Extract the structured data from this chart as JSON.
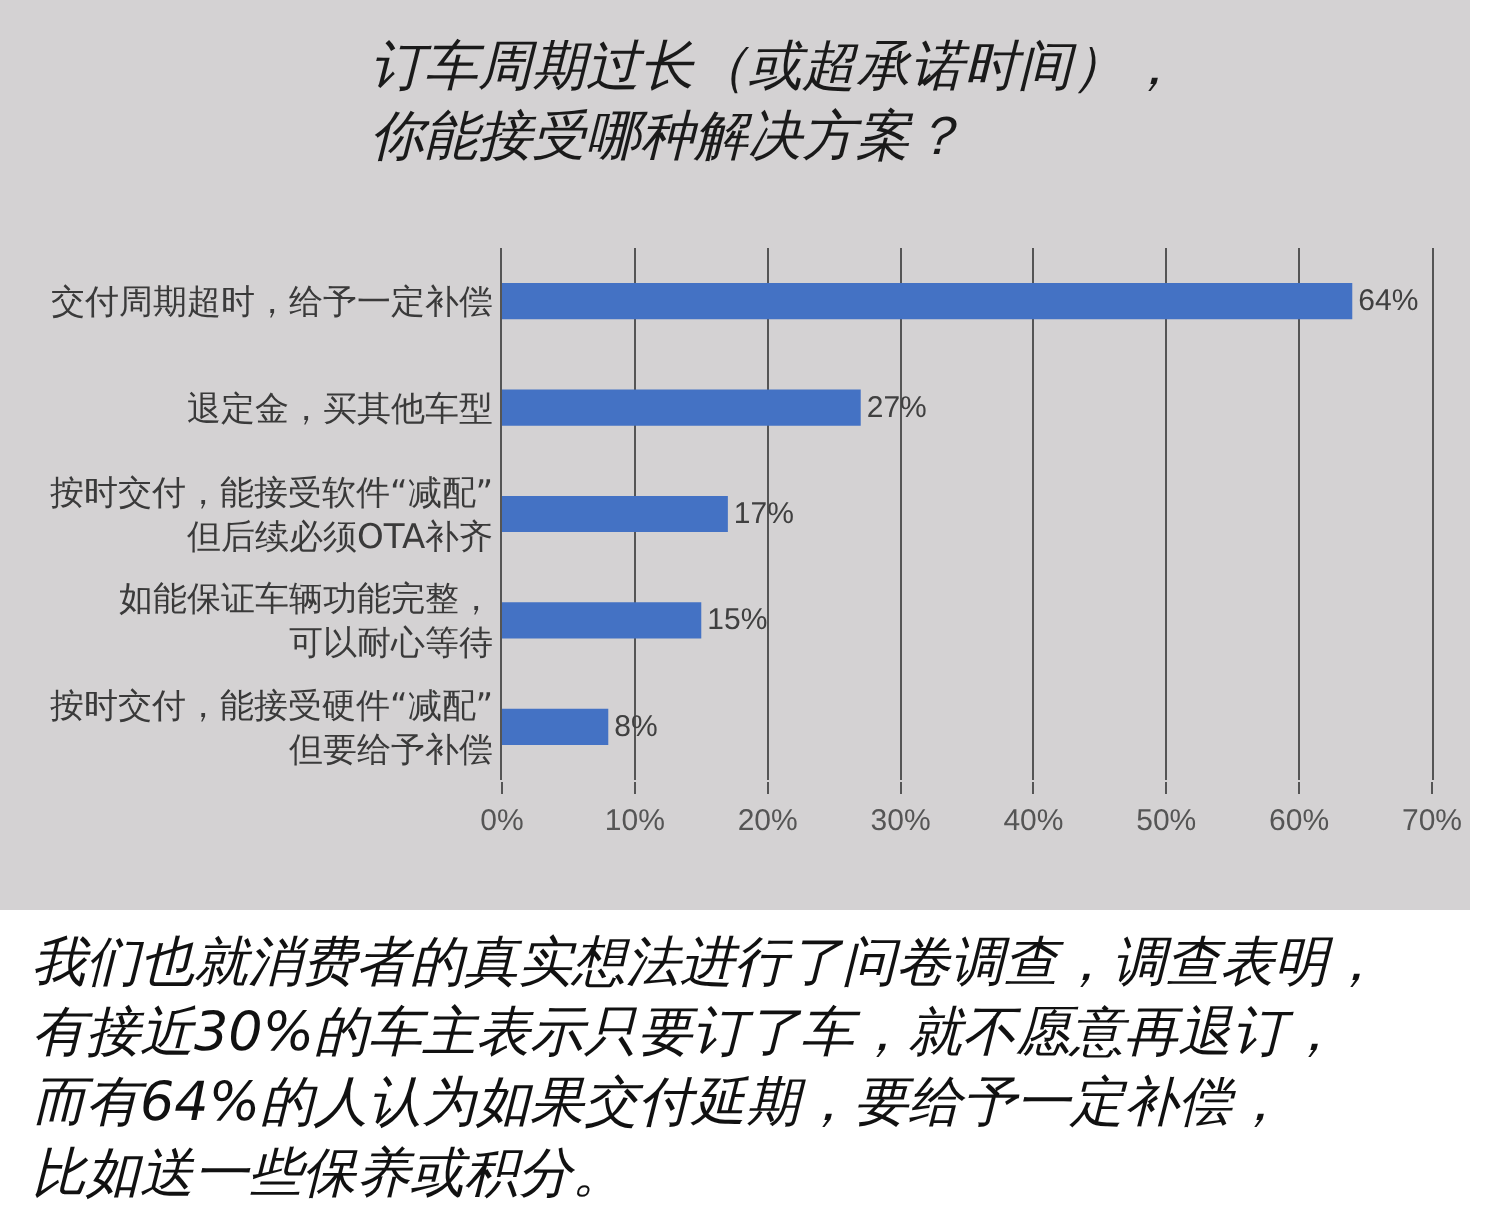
{
  "chart_data": {
    "type": "bar",
    "orientation": "horizontal",
    "title": "订车周期过长（或超承诺时间），你能接受哪种解决方案？",
    "categories": [
      "交付周期超时，给予一定补偿",
      "退定金，买其他车型",
      "按时交付，能接受软件“减配”但后续必须OTA补齐",
      "如能保证车辆功能完整，可以耐心等待",
      "按时交付，能接受硬件“减配”但要给予补偿"
    ],
    "values": [
      64,
      27,
      17,
      15,
      8
    ],
    "value_labels": [
      "64%",
      "27%",
      "17%",
      "15%",
      "8%"
    ],
    "color": "#4472c4",
    "xlim": [
      0,
      70
    ],
    "xticks": [
      {
        "value": 0,
        "label": "0%"
      },
      {
        "value": 10,
        "label": "10%"
      },
      {
        "value": 20,
        "label": "20%"
      },
      {
        "value": 30,
        "label": "30%"
      },
      {
        "value": 40,
        "label": "40%"
      },
      {
        "value": 50,
        "label": "50%"
      },
      {
        "value": 60,
        "label": "60%"
      },
      {
        "value": 70,
        "label": "70%"
      }
    ],
    "grid": "x",
    "annotations": [
      "我们也就消费者的真实想法进行了问卷调查，调查表明，有接近30%的车主表示只要订了车，就不愿意再退订，而有64%的人认为如果交付延期，要给予一定补偿，比如送一些保养或积分。"
    ]
  }
}
